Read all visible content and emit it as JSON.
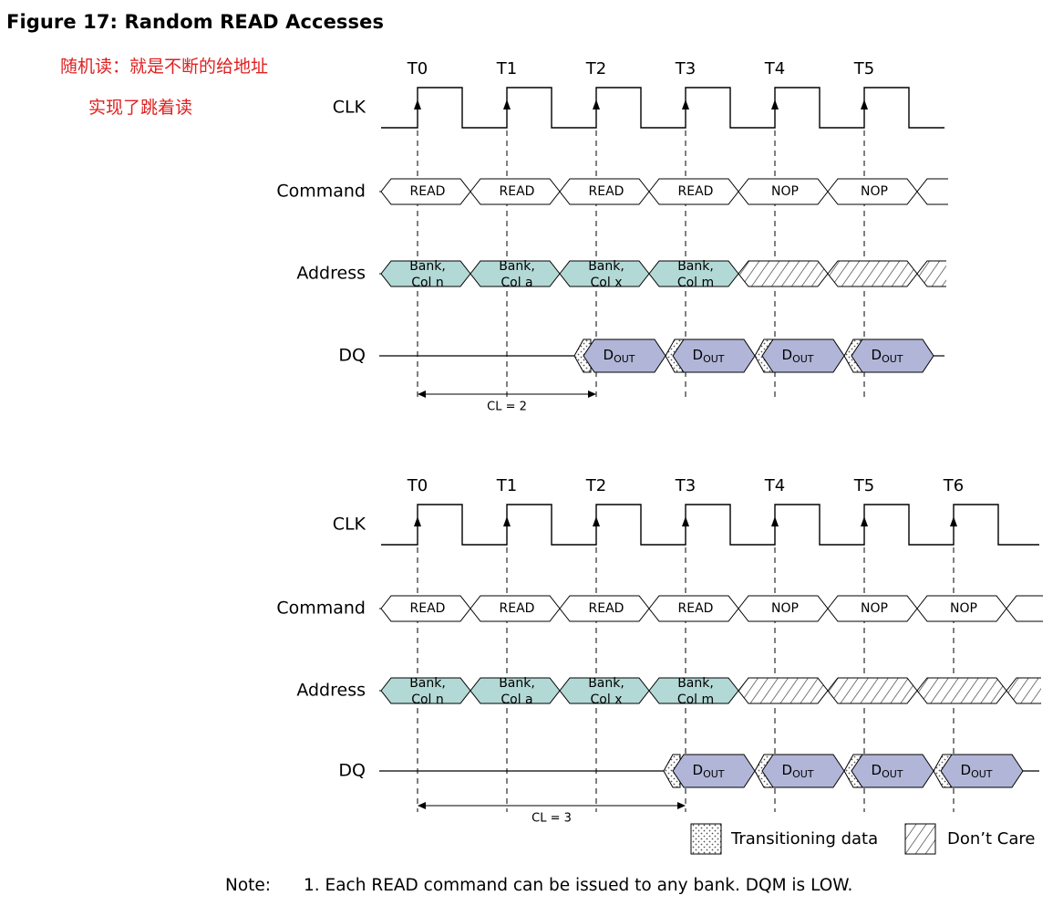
{
  "figure_title": "Figure 17: Random READ Accesses",
  "annotations": [
    "随机读：就是不断的给地址",
    "实现了跳着读"
  ],
  "signal_labels": [
    "CLK",
    "Command",
    "Address",
    "DQ"
  ],
  "dout_label": "D",
  "dout_sub": "OUT",
  "diagrams": [
    {
      "clock_labels": [
        "T0",
        "T1",
        "T2",
        "T3",
        "T4",
        "T5"
      ],
      "commands": [
        "READ",
        "READ",
        "READ",
        "READ",
        "NOP",
        "NOP"
      ],
      "addresses": [
        [
          "Bank,",
          "Col n"
        ],
        [
          "Bank,",
          "Col a"
        ],
        [
          "Bank,",
          "Col x"
        ],
        [
          "Bank,",
          "Col m"
        ]
      ],
      "latency_label": "CL = 2",
      "latency": 2,
      "dout_count": 4
    },
    {
      "clock_labels": [
        "T0",
        "T1",
        "T2",
        "T3",
        "T4",
        "T5",
        "T6"
      ],
      "commands": [
        "READ",
        "READ",
        "READ",
        "READ",
        "NOP",
        "NOP",
        "NOP"
      ],
      "addresses": [
        [
          "Bank,",
          "Col n"
        ],
        [
          "Bank,",
          "Col a"
        ],
        [
          "Bank,",
          "Col x"
        ],
        [
          "Bank,",
          "Col m"
        ]
      ],
      "latency_label": "CL = 3",
      "latency": 3,
      "dout_count": 4
    }
  ],
  "legend": {
    "transitioning": "Transitioning data",
    "dont_care": "Don’t Care"
  },
  "note": {
    "label": "Note:",
    "text": "1.  Each READ command can be issued to any bank. DQM is LOW."
  },
  "colors": {
    "address_fill": "#b3d9d6",
    "dout_fill": "#b1b6d8",
    "annotation": "#e02020"
  }
}
